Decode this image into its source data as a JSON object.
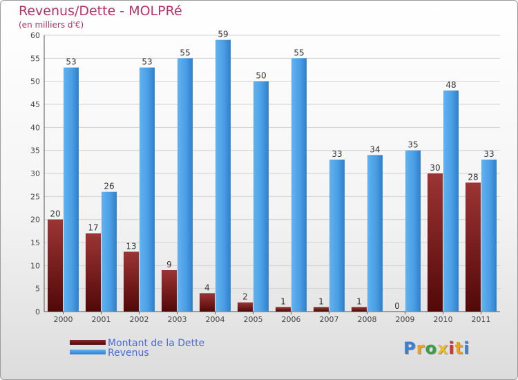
{
  "header": {
    "title": "Revenus/Dette - MOLPRé",
    "subtitle": "(en milliers d'€)"
  },
  "chart_data": {
    "type": "bar",
    "title": "Revenus/Dette - MOLPRé",
    "subtitle": "(en milliers d'€)",
    "xlabel": "",
    "ylabel": "",
    "ylim": [
      0,
      60
    ],
    "yticks": [
      0,
      5,
      10,
      15,
      20,
      25,
      30,
      35,
      40,
      45,
      50,
      55,
      60
    ],
    "grid": true,
    "legend_position": "bottom-left",
    "categories": [
      "2000",
      "2001",
      "2002",
      "2003",
      "2004",
      "2005",
      "2006",
      "2007",
      "2008",
      "2009",
      "2010",
      "2011"
    ],
    "series": [
      {
        "name": "Montant de la Dette",
        "color": "#7a1a1a",
        "values": [
          20,
          17,
          13,
          9,
          4,
          2,
          1,
          1,
          1,
          0,
          30,
          28
        ]
      },
      {
        "name": "Revenus",
        "color": "#3b93dc",
        "values": [
          53,
          26,
          53,
          55,
          59,
          50,
          55,
          33,
          34,
          35,
          48,
          33
        ]
      }
    ]
  },
  "legend": {
    "items": [
      {
        "label": "Montant de la Dette",
        "color": "#7a1a1a"
      },
      {
        "label": "Revenus",
        "color": "#3b93dc"
      }
    ]
  },
  "branding": {
    "logo_text": "Proxiti",
    "letter_colors": [
      "#3a7fd0",
      "#f0a020",
      "#3aa048",
      "#e8c020",
      "#d03030",
      "#f0a020",
      "#3a7fd0"
    ]
  }
}
